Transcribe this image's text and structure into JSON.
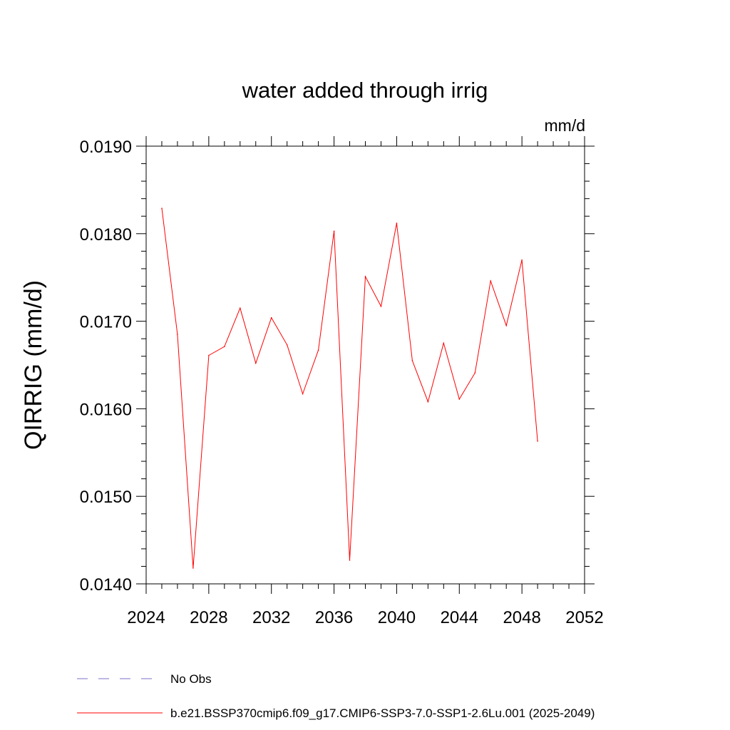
{
  "chart_data": {
    "type": "line",
    "title": "water added through irrig",
    "units": "mm/d",
    "xlabel": "",
    "ylabel": "QIRRIG  (mm/d)",
    "xlim": [
      2024,
      2052
    ],
    "ylim": [
      0.014,
      0.019
    ],
    "x_ticks": [
      "2024",
      "2028",
      "2032",
      "2036",
      "2040",
      "2044",
      "2048",
      "2052"
    ],
    "y_ticks": [
      "0.0140",
      "0.0150",
      "0.0160",
      "0.0170",
      "0.0180",
      "0.0190"
    ],
    "grid": false,
    "legend_position": "bottom",
    "series": [
      {
        "name": "b.e21.BSSP370cmip6.f09_g17.CMIP6-SSP3-7.0-SSP1-2.6Lu.001 (2025-2049)",
        "color": "#ff0000",
        "style": "solid",
        "x": [
          2025,
          2026,
          2027,
          2028,
          2029,
          2030,
          2031,
          2032,
          2033,
          2034,
          2035,
          2036,
          2037,
          2038,
          2039,
          2040,
          2041,
          2042,
          2043,
          2044,
          2045,
          2046,
          2047,
          2048,
          2049
        ],
        "y": [
          0.01829,
          0.01685,
          0.01418,
          0.01661,
          0.01671,
          0.01715,
          0.01652,
          0.01704,
          0.01673,
          0.01617,
          0.01667,
          0.01803,
          0.01427,
          0.01751,
          0.01717,
          0.01812,
          0.01655,
          0.01608,
          0.01675,
          0.01611,
          0.01641,
          0.01746,
          0.01695,
          0.0177,
          0.01563
        ]
      }
    ],
    "legend": [
      {
        "label": "No Obs",
        "color": "#7b6fc4",
        "style": "dashed"
      },
      {
        "label": "b.e21.BSSP370cmip6.f09_g17.CMIP6-SSP3-7.0-SSP1-2.6Lu.001 (2025-2049)",
        "color": "#ff0000",
        "style": "solid"
      }
    ]
  }
}
